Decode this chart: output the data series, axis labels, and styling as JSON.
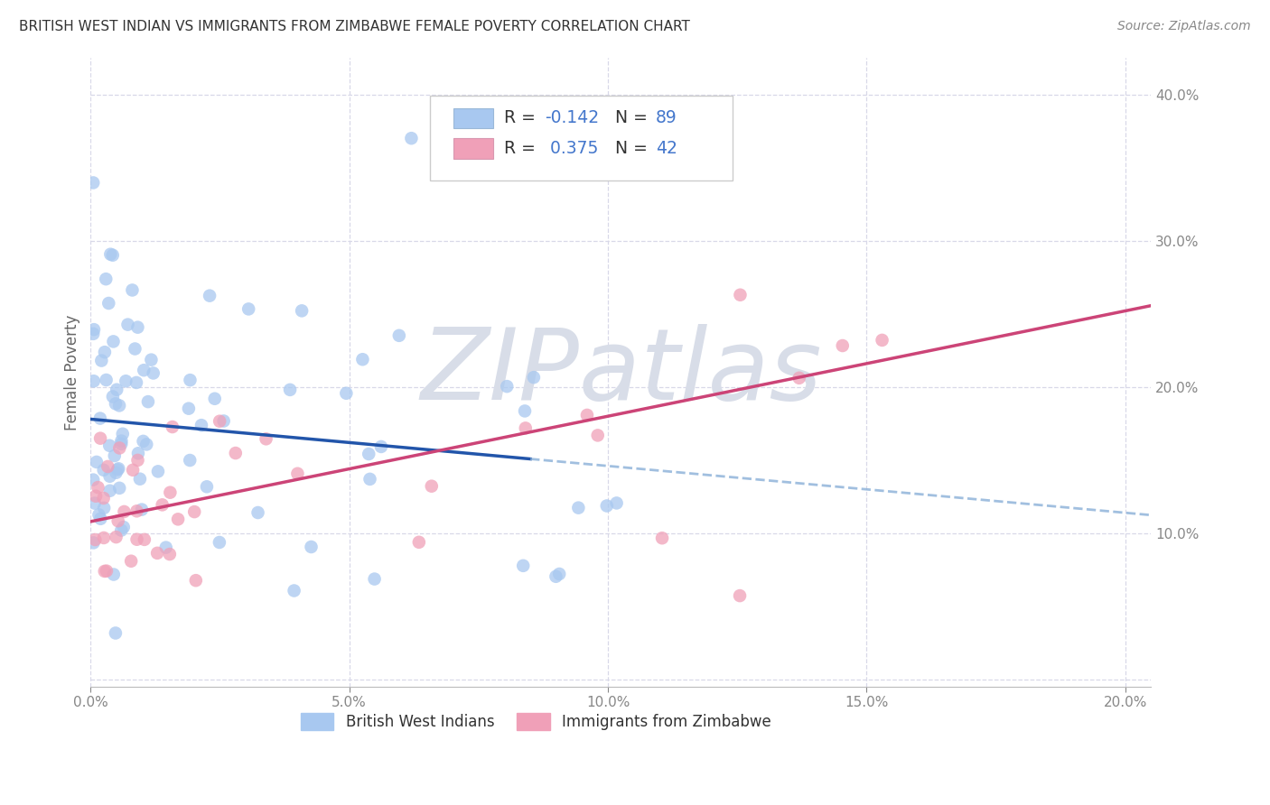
{
  "title": "BRITISH WEST INDIAN VS IMMIGRANTS FROM ZIMBABWE FEMALE POVERTY CORRELATION CHART",
  "source": "Source: ZipAtlas.com",
  "ylabel": "Female Poverty",
  "xlim": [
    0.0,
    0.205
  ],
  "ylim": [
    -0.005,
    0.425
  ],
  "xticks": [
    0.0,
    0.05,
    0.1,
    0.15,
    0.2
  ],
  "yticks": [
    0.0,
    0.1,
    0.2,
    0.3,
    0.4
  ],
  "xtick_labels": [
    "0.0%",
    "5.0%",
    "10.0%",
    "15.0%",
    "20.0%"
  ],
  "ytick_labels": [
    "",
    "10.0%",
    "20.0%",
    "30.0%",
    "40.0%"
  ],
  "legend_label1": "British West Indians",
  "legend_label2": "Immigrants from Zimbabwe",
  "r1": -0.142,
  "n1": 89,
  "r2": 0.375,
  "n2": 42,
  "color_blue": "#a8c8f0",
  "color_pink": "#f0a0b8",
  "line_blue": "#2255aa",
  "line_pink": "#cc4477",
  "line_blue_dash": "#8ab0d8",
  "watermark_text": "ZIPatlas",
  "watermark_color": "#d8dde8",
  "background_color": "#ffffff",
  "grid_color": "#d8d8e8",
  "tick_color": "#4477cc",
  "title_color": "#333333",
  "figsize": [
    14.06,
    8.92
  ],
  "dpi": 100,
  "blue_line_intercept": 0.178,
  "blue_line_slope": -0.32,
  "pink_line_intercept": 0.108,
  "pink_line_slope": 0.72
}
